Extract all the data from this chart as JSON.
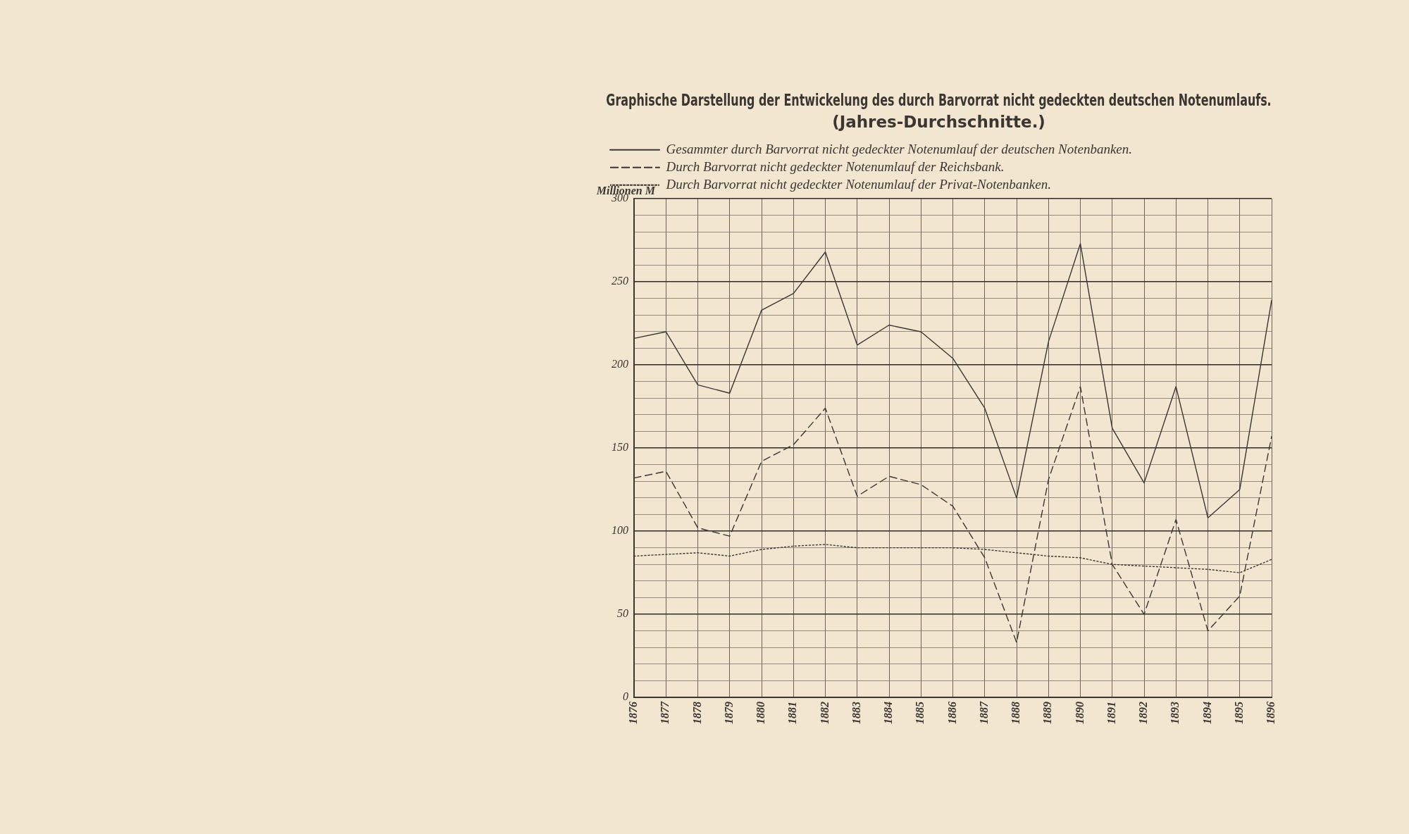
{
  "chart_data": {
    "type": "line",
    "title": "Graphische Darstellung der Entwickelung des durch Barvorrat nicht gedeckten deutschen Notenumlaufs.",
    "subtitle": "(Jahres-Durchschnitte.)",
    "ylabel": "Millionen M",
    "categories": [
      "1876",
      "1877",
      "1878",
      "1879",
      "1880",
      "1881",
      "1882",
      "1883",
      "1884",
      "1885",
      "1886",
      "1887",
      "1888",
      "1889",
      "1890",
      "1891",
      "1892",
      "1893",
      "1894",
      "1895",
      "1896"
    ],
    "series": [
      {
        "name": "Gesammter durch Barvorrat nicht gedeckter Notenumlauf der deutschen Notenbanken.",
        "color": "#3a3632",
        "line_style": "solid",
        "values": [
          216,
          220,
          188,
          183,
          233,
          243,
          268,
          212,
          224,
          220,
          204,
          174,
          120,
          214,
          273,
          162,
          129,
          187,
          108,
          125,
          239
        ]
      },
      {
        "name": "Durch Barvorrat nicht gedeckter Notenumlauf der Reichsbank.",
        "color": "#3a3632",
        "line_style": "dashed",
        "values": [
          132,
          136,
          102,
          97,
          142,
          152,
          174,
          121,
          133,
          128,
          115,
          84,
          33,
          131,
          187,
          80,
          50,
          107,
          40,
          61,
          157
        ]
      },
      {
        "name": "Durch Barvorrat nicht gedeckter Notenumlauf der Privat-Notenbanken.",
        "color": "#3a3632",
        "line_style": "dotted",
        "values": [
          85,
          86,
          87,
          85,
          89,
          91,
          92,
          90,
          90,
          90,
          90,
          89,
          87,
          85,
          84,
          80,
          79,
          78,
          77,
          75,
          83
        ]
      }
    ],
    "ylim": [
      0,
      300
    ],
    "yticks": [
      0,
      {
        "value": 10,
        "label": null
      },
      {
        "value": 20,
        "label": null
      },
      {
        "value": 30,
        "label": null
      },
      {
        "value": 40,
        "label": null
      },
      50,
      {
        "value": 60,
        "label": null
      },
      {
        "value": 70,
        "label": null
      },
      {
        "value": 80,
        "label": null
      },
      {
        "value": 90,
        "label": null
      },
      100,
      {
        "value": 110,
        "label": null
      },
      {
        "value": 120,
        "label": null
      },
      {
        "value": 130,
        "label": null
      },
      {
        "value": 140,
        "label": null
      },
      150,
      {
        "value": 160,
        "label": null
      },
      {
        "value": 170,
        "label": null
      },
      {
        "value": 180,
        "label": null
      },
      {
        "value": 190,
        "label": null
      },
      200,
      {
        "value": 210,
        "label": null
      },
      {
        "value": 220,
        "label": null
      },
      {
        "value": 230,
        "label": null
      },
      {
        "value": 240,
        "label": null
      },
      250,
      {
        "value": 260,
        "label": null
      },
      {
        "value": 270,
        "label": null
      },
      {
        "value": 280,
        "label": null
      },
      {
        "value": 290,
        "label": null
      },
      300
    ],
    "grid": true,
    "legend": "top",
    "marker": "none"
  }
}
